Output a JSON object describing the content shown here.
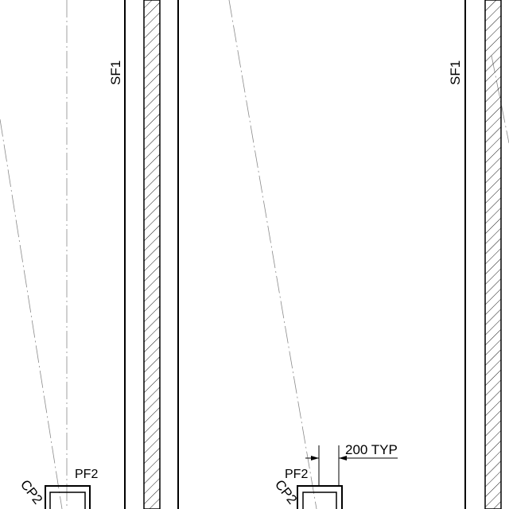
{
  "labels": {
    "strip_footing_left": "SF1",
    "strip_footing_right": "SF1",
    "pad_footing_left": "PF2",
    "pad_footing_right": "PF2",
    "column_pad_left": "CP2",
    "column_pad_right": "CP2",
    "dimension": "200 TYP"
  },
  "colors": {
    "line": "#000000",
    "centerline": "#8a8a8a",
    "background": "#ffffff"
  },
  "pattern": {
    "hatch": "diagonal"
  }
}
